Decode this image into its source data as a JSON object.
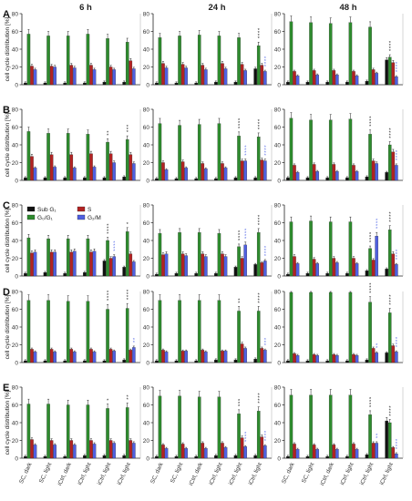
{
  "colors": {
    "sub_g1": "#111111",
    "g0g1": "#2e8b2e",
    "s": "#b22222",
    "g2m": "#4f5fe0",
    "sig": "#222222",
    "sig_hi": "#5b6ee8",
    "axis": "#222222"
  },
  "figure": {
    "col_titles": [
      "6 h",
      "24 h",
      "48 h"
    ],
    "row_labels": [
      "A",
      "B",
      "C",
      "D",
      "E"
    ],
    "ylabel": "cell cycle distribution [%]",
    "yticks": [
      "0",
      "20",
      "40",
      "60",
      "80"
    ],
    "categories": [
      "SC, dark",
      "SC, light",
      "iCtrl, dark",
      "iCtrl, light",
      "iCtrl, light",
      "iCtrl, light"
    ],
    "legend": [
      "Sub G₁",
      "G₀/G₁",
      "S",
      "G₂/M"
    ]
  },
  "chart_data": [
    {
      "type": "bar",
      "row": "A",
      "time": "6 h",
      "categories": [
        "SC, dark",
        "SC, light",
        "iCtrl, dark",
        "iCtrl, light",
        "iCtrl, light",
        "iCtrl, light"
      ],
      "ylim": [
        0,
        80
      ],
      "series": [
        {
          "name": "Sub G₁",
          "values": [
            2,
            2,
            2,
            2,
            3,
            3
          ]
        },
        {
          "name": "G₀/G₁",
          "values": [
            57,
            55,
            55,
            57,
            52,
            48
          ]
        },
        {
          "name": "S",
          "values": [
            21,
            21,
            22,
            22,
            20,
            27
          ]
        },
        {
          "name": "G₂/M",
          "values": [
            17,
            20,
            19,
            17,
            17,
            18
          ]
        }
      ],
      "sig": [
        [],
        [],
        [],
        [],
        [],
        []
      ]
    },
    {
      "type": "bar",
      "row": "A",
      "time": "24 h",
      "categories": [
        "SC, dark",
        "SC, light",
        "iCtrl, dark",
        "iCtrl, light",
        "iCtrl, light",
        "iCtrl, light"
      ],
      "ylim": [
        0,
        80
      ],
      "series": [
        {
          "name": "Sub G₁",
          "values": [
            2,
            2,
            2,
            3,
            3,
            18
          ]
        },
        {
          "name": "G₀/G₁",
          "values": [
            53,
            55,
            56,
            55,
            53,
            44
          ]
        },
        {
          "name": "S",
          "values": [
            24,
            23,
            22,
            24,
            23,
            22
          ]
        },
        {
          "name": "G₂/M",
          "values": [
            19,
            19,
            17,
            18,
            16,
            15
          ]
        }
      ],
      "sig": [
        [],
        [],
        [],
        [],
        [],
        [
          "****",
          "****"
        ]
      ]
    },
    {
      "type": "bar",
      "row": "A",
      "time": "48 h",
      "categories": [
        "SC, dark",
        "SC, light",
        "iCtrl, dark",
        "iCtrl, light",
        "iCtrl, light",
        "iCtrl, light"
      ],
      "ylim": [
        0,
        80
      ],
      "series": [
        {
          "name": "Sub G₁",
          "values": [
            3,
            3,
            3,
            3,
            4,
            28
          ]
        },
        {
          "name": "G₀/G₁",
          "values": [
            71,
            70,
            69,
            70,
            65,
            31
          ]
        },
        {
          "name": "S",
          "values": [
            15,
            16,
            16,
            15,
            17,
            25
          ]
        },
        {
          "name": "G₂/M",
          "values": [
            10,
            11,
            11,
            10,
            13,
            9
          ]
        }
      ],
      "sig": [
        [],
        [],
        [],
        [],
        [],
        [
          "****",
          "****"
        ]
      ]
    },
    {
      "type": "bar",
      "row": "B",
      "time": "6 h",
      "categories": [
        "SC, dark",
        "SC, light",
        "iCtrl, dark",
        "iCtrl, light",
        "iCtrl, light",
        "iCtrl, light"
      ],
      "ylim": [
        0,
        80
      ],
      "series": [
        {
          "name": "Sub G₁",
          "values": [
            3,
            3,
            3,
            3,
            3,
            4
          ]
        },
        {
          "name": "G₀/G₁",
          "values": [
            55,
            53,
            53,
            52,
            43,
            46
          ]
        },
        {
          "name": "S",
          "values": [
            27,
            29,
            29,
            30,
            30,
            29
          ]
        },
        {
          "name": "G₂/M",
          "values": [
            14,
            15,
            14,
            15,
            20,
            19
          ]
        }
      ],
      "sig": [
        [],
        [],
        [],
        [],
        [
          "**"
        ],
        [
          "***"
        ]
      ]
    },
    {
      "type": "bar",
      "row": "B",
      "time": "24 h",
      "categories": [
        "SC, dark",
        "SC, light",
        "iCtrl, dark",
        "iCtrl, light",
        "iCtrl, light",
        "iCtrl, light"
      ],
      "ylim": [
        0,
        80
      ],
      "series": [
        {
          "name": "Sub G₁",
          "values": [
            2,
            2,
            2,
            2,
            3,
            3
          ]
        },
        {
          "name": "G₀/G₁",
          "values": [
            64,
            62,
            63,
            64,
            50,
            49
          ]
        },
        {
          "name": "S",
          "values": [
            20,
            21,
            19,
            19,
            22,
            23
          ]
        },
        {
          "name": "G₂/M",
          "values": [
            12,
            14,
            13,
            14,
            22,
            22
          ]
        }
      ],
      "sig": [
        [],
        [],
        [],
        [],
        [
          "****",
          "****"
        ],
        [
          "****",
          "****"
        ]
      ]
    },
    {
      "type": "bar",
      "row": "B",
      "time": "48 h",
      "categories": [
        "SC, dark",
        "SC, light",
        "iCtrl, dark",
        "iCtrl, light",
        "iCtrl, light",
        "iCtrl, light"
      ],
      "ylim": [
        0,
        80
      ],
      "series": [
        {
          "name": "Sub G₁",
          "values": [
            3,
            3,
            3,
            3,
            4,
            9
          ]
        },
        {
          "name": "G₀/G₁",
          "values": [
            70,
            68,
            68,
            69,
            52,
            40
          ]
        },
        {
          "name": "S",
          "values": [
            17,
            18,
            18,
            17,
            22,
            32
          ]
        },
        {
          "name": "G₂/M",
          "values": [
            9,
            10,
            10,
            10,
            19,
            17
          ]
        }
      ],
      "sig": [
        [],
        [],
        [],
        [],
        [
          "****"
        ],
        [
          "****",
          "****"
        ]
      ]
    },
    {
      "type": "bar",
      "row": "C",
      "time": "6 h",
      "categories": [
        "SC, dark",
        "SC, light",
        "iCtrl, dark",
        "iCtrl, light",
        "iCtrl, light",
        "iCtrl, light"
      ],
      "ylim": [
        0,
        80
      ],
      "series": [
        {
          "name": "Sub G₁",
          "values": [
            3,
            4,
            3,
            4,
            17,
            10
          ]
        },
        {
          "name": "G₀/G₁",
          "values": [
            43,
            42,
            42,
            42,
            40,
            50
          ]
        },
        {
          "name": "S",
          "values": [
            26,
            27,
            27,
            27,
            20,
            25
          ]
        },
        {
          "name": "G₂/M",
          "values": [
            27,
            27,
            28,
            28,
            22,
            16
          ]
        }
      ],
      "sig": [
        [],
        [],
        [],
        [],
        [
          "****",
          "****"
        ],
        [
          "*"
        ]
      ]
    },
    {
      "type": "bar",
      "row": "C",
      "time": "24 h",
      "categories": [
        "SC, dark",
        "SC, light",
        "iCtrl, dark",
        "iCtrl, light",
        "iCtrl, light",
        "iCtrl, light"
      ],
      "ylim": [
        0,
        80
      ],
      "series": [
        {
          "name": "Sub G₁",
          "values": [
            2,
            3,
            3,
            3,
            10,
            13
          ]
        },
        {
          "name": "G₀/G₁",
          "values": [
            48,
            49,
            49,
            48,
            33,
            49
          ]
        },
        {
          "name": "S",
          "values": [
            24,
            25,
            25,
            25,
            20,
            15
          ]
        },
        {
          "name": "G₂/M",
          "values": [
            25,
            23,
            22,
            22,
            35,
            17
          ]
        }
      ],
      "sig": [
        [],
        [],
        [],
        [],
        [
          "****",
          "****"
        ],
        [
          "****",
          "****"
        ]
      ]
    },
    {
      "type": "bar",
      "row": "C",
      "time": "48 h",
      "categories": [
        "SC, dark",
        "SC, light",
        "iCtrl, dark",
        "iCtrl, light",
        "iCtrl, light",
        "iCtrl, light"
      ],
      "ylim": [
        0,
        80
      ],
      "series": [
        {
          "name": "Sub G₁",
          "values": [
            2,
            3,
            3,
            3,
            6,
            8
          ]
        },
        {
          "name": "G₀/G₁",
          "values": [
            61,
            62,
            61,
            61,
            31,
            52
          ]
        },
        {
          "name": "S",
          "values": [
            22,
            19,
            20,
            20,
            18,
            25
          ]
        },
        {
          "name": "G₂/M",
          "values": [
            14,
            14,
            15,
            14,
            45,
            13
          ]
        }
      ],
      "sig": [
        [],
        [],
        [],
        [],
        [
          "****",
          "****"
        ],
        [
          "****",
          "****"
        ]
      ]
    },
    {
      "type": "bar",
      "row": "D",
      "time": "6 h",
      "categories": [
        "SC, dark",
        "SC, light",
        "iCtrl, dark",
        "iCtrl, light",
        "iCtrl, light",
        "iCtrl, light"
      ],
      "ylim": [
        0,
        80
      ],
      "series": [
        {
          "name": "Sub G₁",
          "values": [
            2,
            2,
            2,
            2,
            2,
            3
          ]
        },
        {
          "name": "G₀/G₁",
          "values": [
            70,
            70,
            69,
            69,
            60,
            61
          ]
        },
        {
          "name": "S",
          "values": [
            15,
            15,
            15,
            15,
            15,
            14
          ]
        },
        {
          "name": "G₂/M",
          "values": [
            12,
            12,
            12,
            12,
            13,
            17
          ]
        }
      ],
      "sig": [
        [],
        [],
        [],
        [],
        [
          "****"
        ],
        [
          "****",
          "**"
        ]
      ]
    },
    {
      "type": "bar",
      "row": "D",
      "time": "24 h",
      "categories": [
        "SC, dark",
        "SC, light",
        "iCtrl, dark",
        "iCtrl, light",
        "iCtrl, light",
        "iCtrl, light"
      ],
      "ylim": [
        0,
        80
      ],
      "series": [
        {
          "name": "Sub G₁",
          "values": [
            2,
            2,
            2,
            3,
            3,
            4
          ]
        },
        {
          "name": "G₀/G₁",
          "values": [
            70,
            70,
            70,
            70,
            58,
            58
          ]
        },
        {
          "name": "S",
          "values": [
            14,
            13,
            14,
            13,
            21,
            16
          ]
        },
        {
          "name": "G₂/M",
          "values": [
            12,
            13,
            12,
            13,
            16,
            14
          ]
        }
      ],
      "sig": [
        [],
        [],
        [],
        [],
        [
          "**"
        ],
        [
          "****",
          "***"
        ]
      ]
    },
    {
      "type": "bar",
      "row": "D",
      "time": "48 h",
      "categories": [
        "SC, dark",
        "SC, light",
        "iCtrl, dark",
        "iCtrl, light",
        "iCtrl, light",
        "iCtrl, light"
      ],
      "ylim": [
        0,
        80
      ],
      "series": [
        {
          "name": "Sub G₁",
          "values": [
            2,
            2,
            2,
            2,
            3,
            11
          ]
        },
        {
          "name": "G₀/G₁",
          "values": [
            79,
            79,
            79,
            79,
            68,
            56
          ]
        },
        {
          "name": "S",
          "values": [
            10,
            9,
            9,
            9,
            16,
            19
          ]
        },
        {
          "name": "G₂/M",
          "values": [
            8,
            8,
            8,
            8,
            11,
            12
          ]
        }
      ],
      "sig": [
        [],
        [],
        [],
        [],
        [
          "****",
          "**"
        ],
        [
          "****",
          "****"
        ]
      ]
    },
    {
      "type": "bar",
      "row": "E",
      "time": "6 h",
      "categories": [
        "SC, dark",
        "SC, light",
        "iCtrl, dark",
        "iCtrl, light",
        "iCtrl, light",
        "iCtrl, light"
      ],
      "ylim": [
        0,
        80
      ],
      "series": [
        {
          "name": "Sub G₁",
          "values": [
            2,
            2,
            2,
            3,
            3,
            3
          ]
        },
        {
          "name": "G₀/G₁",
          "values": [
            61,
            61,
            60,
            60,
            56,
            57
          ]
        },
        {
          "name": "S",
          "values": [
            21,
            20,
            20,
            20,
            20,
            20
          ]
        },
        {
          "name": "G₂/M",
          "values": [
            15,
            15,
            15,
            16,
            17,
            17
          ]
        }
      ],
      "sig": [
        [],
        [],
        [],
        [],
        [
          "*"
        ],
        [
          "**"
        ]
      ]
    },
    {
      "type": "bar",
      "row": "E",
      "time": "24 h",
      "categories": [
        "SC, dark",
        "SC, light",
        "iCtrl, dark",
        "iCtrl, light",
        "iCtrl, light",
        "iCtrl, light"
      ],
      "ylim": [
        0,
        80
      ],
      "series": [
        {
          "name": "Sub G₁",
          "values": [
            2,
            2,
            2,
            3,
            3,
            3
          ]
        },
        {
          "name": "G₀/G₁",
          "values": [
            70,
            70,
            69,
            69,
            50,
            53
          ]
        },
        {
          "name": "S",
          "values": [
            15,
            16,
            17,
            17,
            23,
            24
          ]
        },
        {
          "name": "G₂/M",
          "values": [
            11,
            11,
            11,
            12,
            13,
            14
          ]
        }
      ],
      "sig": [
        [],
        [],
        [],
        [],
        [
          "***",
          "****"
        ],
        [
          "****",
          "****"
        ]
      ]
    },
    {
      "type": "bar",
      "row": "E",
      "time": "48 h",
      "categories": [
        "SC, dark",
        "SC, light",
        "iCtrl, dark",
        "iCtrl, light",
        "iCtrl, light",
        "iCtrl, light"
      ],
      "ylim": [
        0,
        80
      ],
      "series": [
        {
          "name": "Sub G₁",
          "values": [
            2,
            2,
            2,
            2,
            4,
            42
          ]
        },
        {
          "name": "G₀/G₁",
          "values": [
            71,
            71,
            71,
            71,
            49,
            40
          ]
        },
        {
          "name": "S",
          "values": [
            16,
            15,
            15,
            16,
            17,
            12
          ]
        },
        {
          "name": "G₂/M",
          "values": [
            10,
            10,
            10,
            10,
            17,
            5
          ]
        }
      ],
      "sig": [
        [],
        [],
        [],
        [],
        [
          "****",
          "**"
        ],
        [
          "****",
          "****"
        ]
      ]
    }
  ]
}
